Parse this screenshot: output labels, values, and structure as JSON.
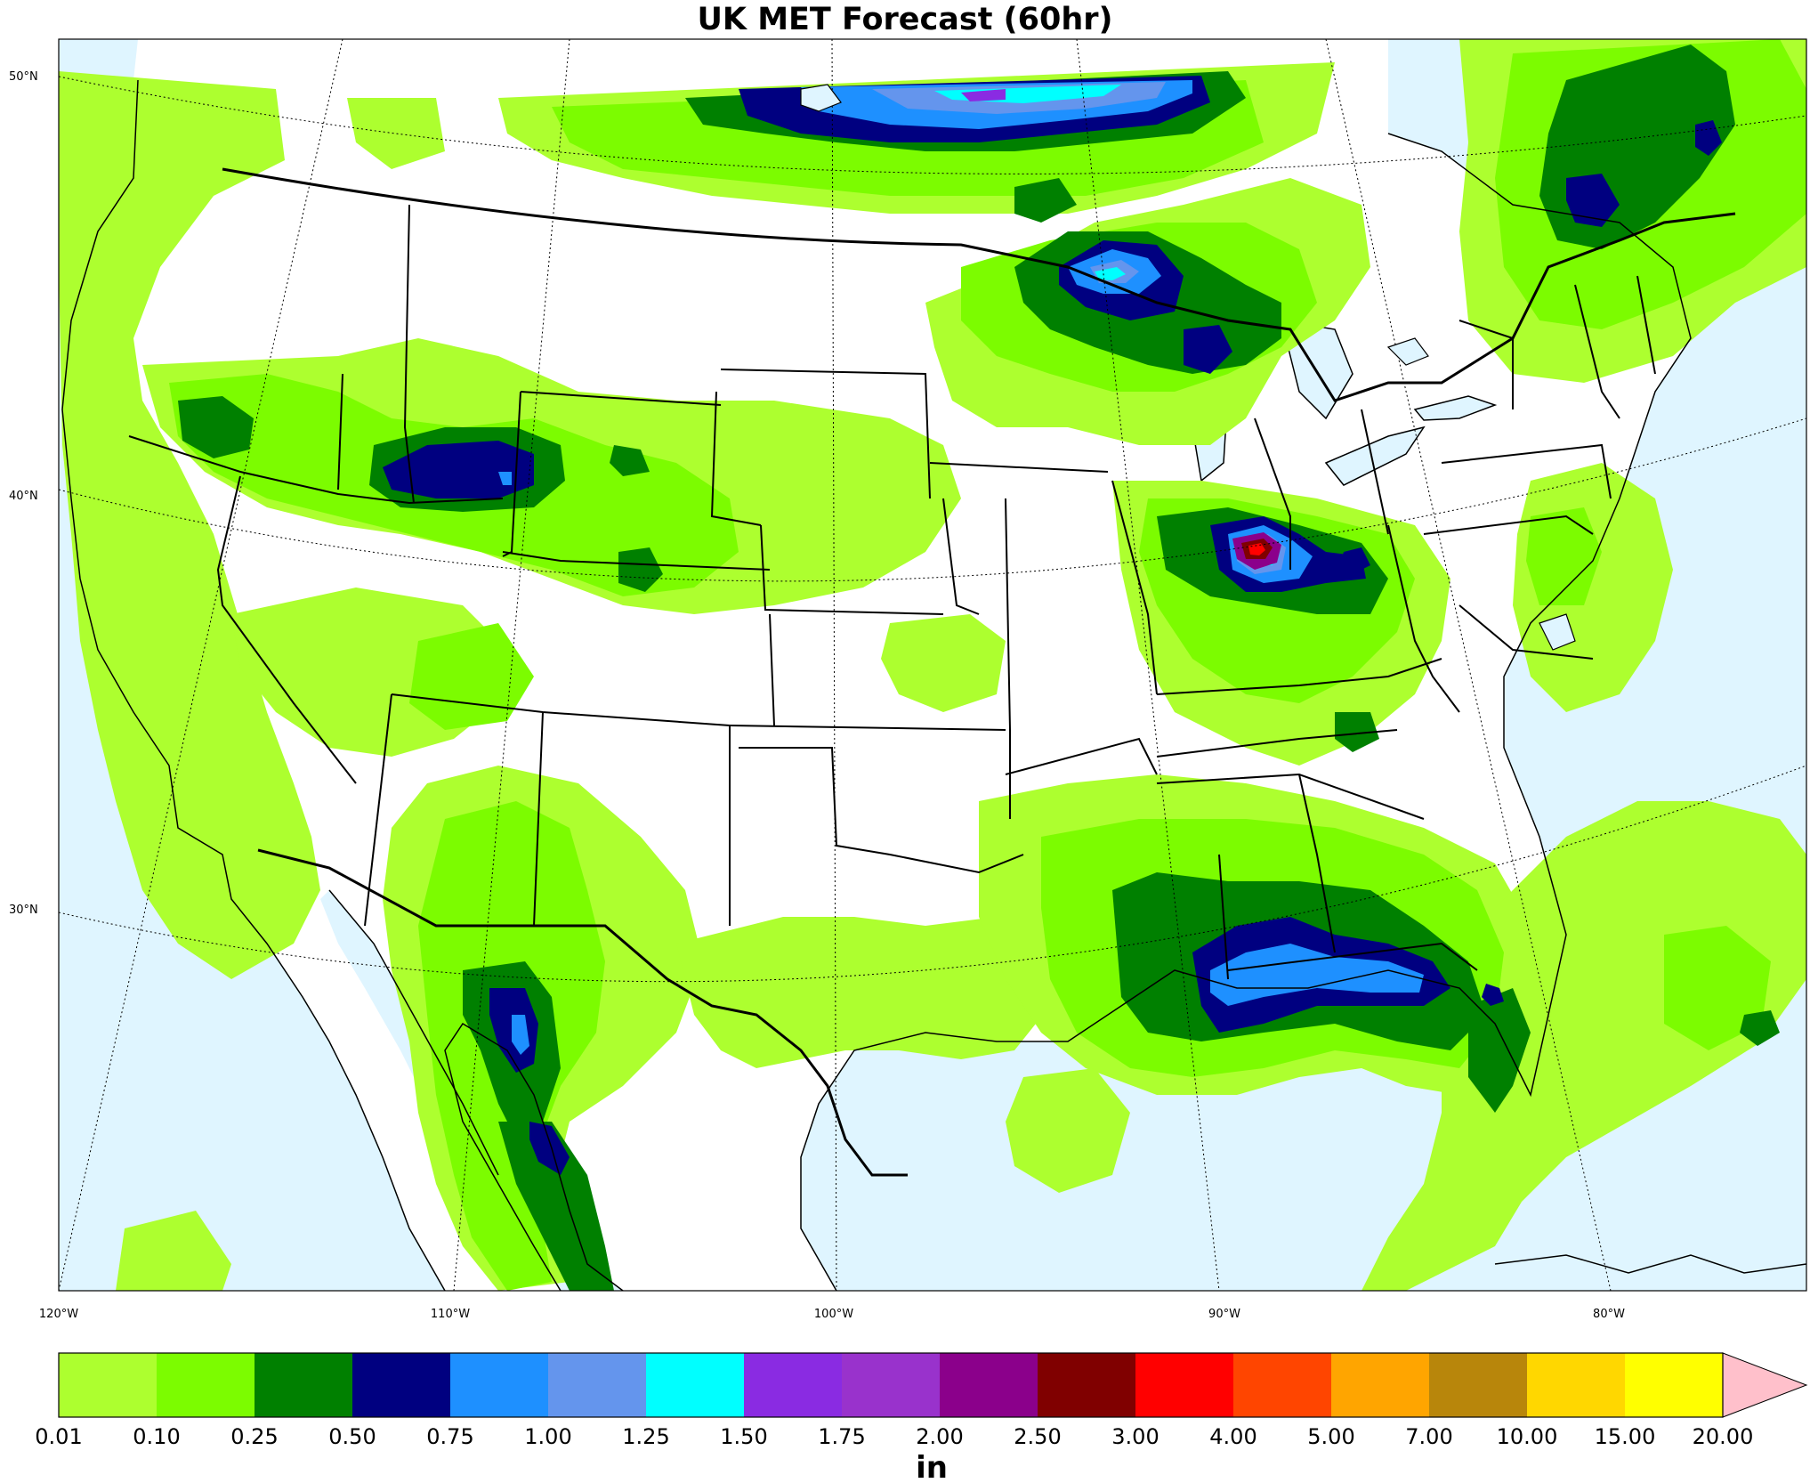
{
  "title": "UK MET Forecast (60hr)",
  "map": {
    "lat_labels": [
      "50°N",
      "40°N",
      "30°N"
    ],
    "lon_labels": [
      "120°W",
      "110°W",
      "100°W",
      "90°W",
      "80°W"
    ],
    "ocean_color": "#dff5ff",
    "land_color": "#ffffff"
  },
  "colorbar": {
    "unit": "in",
    "levels": [
      "0.01",
      "0.10",
      "0.25",
      "0.50",
      "0.75",
      "1.00",
      "1.25",
      "1.50",
      "1.75",
      "2.00",
      "2.50",
      "3.00",
      "4.00",
      "5.00",
      "7.00",
      "10.00",
      "15.00",
      "20.00"
    ],
    "colors": [
      "#adff2f",
      "#7cfc00",
      "#008000",
      "#000080",
      "#1e90ff",
      "#6495ed",
      "#00ffff",
      "#8a2be2",
      "#9932cc",
      "#8b008b",
      "#800000",
      "#ff0000",
      "#ff4500",
      "#ffa500",
      "#b8860b",
      "#ffd700",
      "#ffff00"
    ],
    "extend_color": "#ffc0cb"
  }
}
